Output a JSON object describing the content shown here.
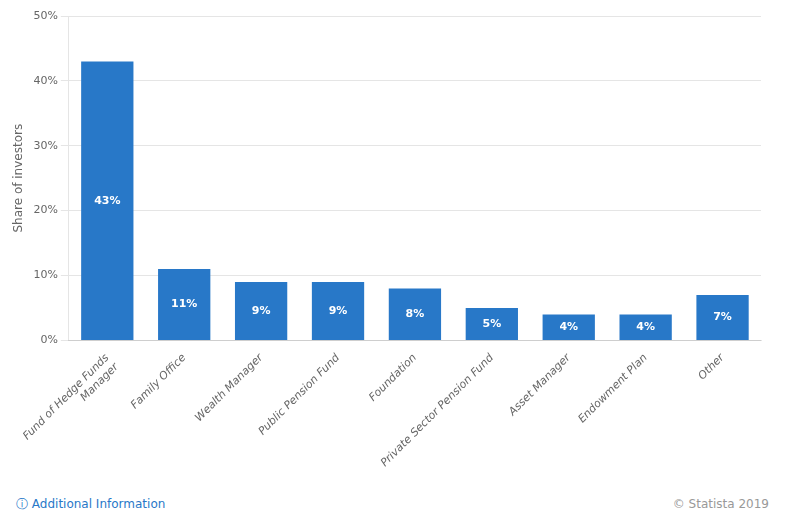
{
  "chart_data": {
    "type": "bar",
    "categories": [
      "Fund of Hedge Funds\nManager",
      "Family Office",
      "Wealth Manager",
      "Public Pension Fund",
      "Foundation",
      "Private Sector Pension Fund",
      "Asset Manager",
      "Endowment Plan",
      "Other"
    ],
    "values": [
      43,
      11,
      9,
      9,
      8,
      5,
      4,
      4,
      7
    ],
    "value_labels": [
      "43%",
      "11%",
      "9%",
      "9%",
      "8%",
      "5%",
      "4%",
      "4%",
      "7%"
    ],
    "data_labels": true,
    "color": "#2878C8",
    "ylabel": "Share of investors",
    "ylim": [
      0,
      50
    ],
    "yticks": [
      {
        "value": 0,
        "label": "0%"
      },
      {
        "value": 10,
        "label": "10%"
      },
      {
        "value": 20,
        "label": "20%"
      },
      {
        "value": 30,
        "label": "30%"
      },
      {
        "value": 40,
        "label": "40%"
      },
      {
        "value": 50,
        "label": "50%"
      }
    ],
    "grid": true,
    "annotations": [
      "ⓘ Additional Information",
      "© Statista 2019"
    ]
  }
}
